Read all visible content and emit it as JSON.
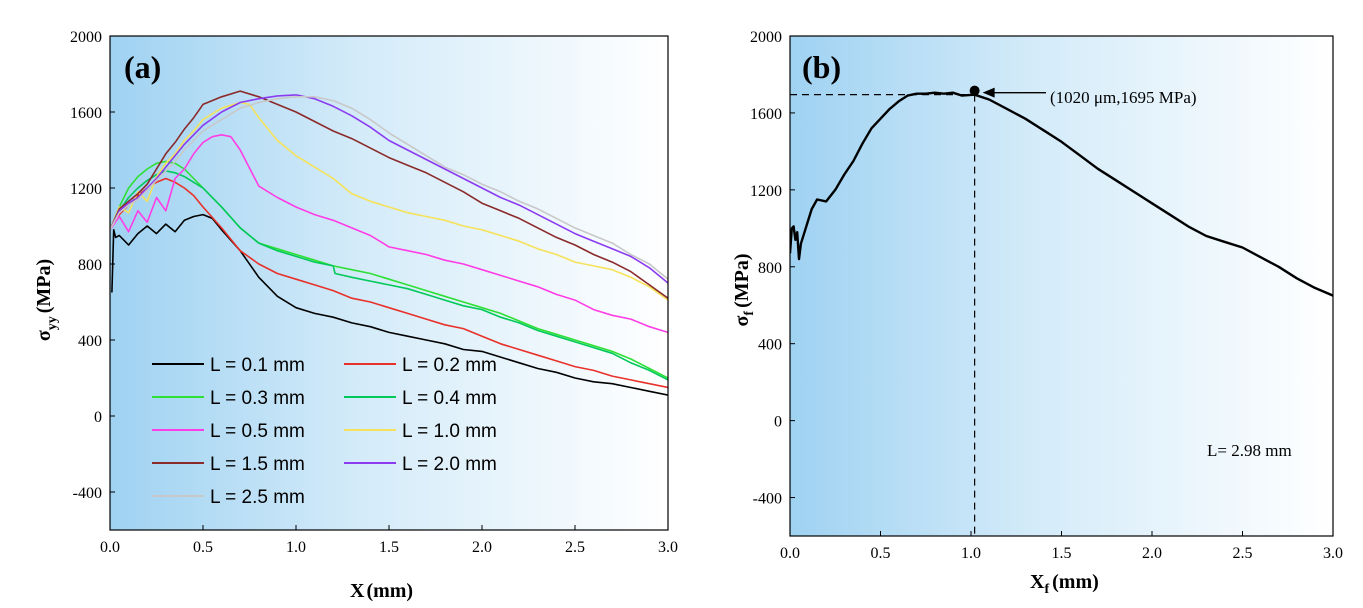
{
  "chart_data": [
    {
      "type": "line",
      "panel_label": "(a)",
      "xlabel": "X",
      "xlabel_unit": "(mm)",
      "ylabel": "σ",
      "ylabel_sub": "yy",
      "ylabel_unit": "(MPa)",
      "xlim": [
        0,
        3.0
      ],
      "ylim": [
        -600,
        2000
      ],
      "xticks": [
        "0.0",
        "0.5",
        "1.0",
        "1.5",
        "2.0",
        "2.5",
        "3.0"
      ],
      "xtick_values": [
        0,
        0.5,
        1.0,
        1.5,
        2.0,
        2.5,
        3.0
      ],
      "yticks": [
        "2000",
        "1600",
        "1200",
        "800",
        "400",
        "0",
        "-400"
      ],
      "ytick_values": [
        2000,
        1600,
        1200,
        800,
        400,
        0,
        -400
      ],
      "legend_position": "bottom-left",
      "series": [
        {
          "name": "L = 0.1 mm",
          "color": "#000000",
          "x": [
            0.01,
            0.02,
            0.03,
            0.05,
            0.1,
            0.15,
            0.2,
            0.25,
            0.3,
            0.35,
            0.4,
            0.45,
            0.5,
            0.55,
            0.6,
            0.7,
            0.8,
            0.9,
            1.0,
            1.1,
            1.2,
            1.3,
            1.4,
            1.5,
            1.6,
            1.7,
            1.8,
            1.9,
            2.0,
            2.1,
            2.2,
            2.3,
            2.4,
            2.5,
            2.6,
            2.7,
            2.8,
            2.9,
            3.0
          ],
          "y": [
            650,
            980,
            940,
            950,
            900,
            960,
            1000,
            960,
            1010,
            970,
            1030,
            1050,
            1060,
            1040,
            980,
            870,
            730,
            630,
            570,
            540,
            520,
            490,
            470,
            440,
            420,
            400,
            380,
            350,
            340,
            310,
            280,
            250,
            230,
            200,
            180,
            170,
            150,
            130,
            110
          ]
        },
        {
          "name": "L = 0.2 mm",
          "color": "#e8312a",
          "x": [
            0.0,
            0.05,
            0.1,
            0.15,
            0.2,
            0.25,
            0.3,
            0.35,
            0.4,
            0.45,
            0.5,
            0.6,
            0.7,
            0.8,
            0.9,
            1.0,
            1.1,
            1.2,
            1.3,
            1.4,
            1.5,
            1.6,
            1.7,
            1.8,
            1.9,
            2.0,
            2.1,
            2.2,
            2.3,
            2.4,
            2.5,
            2.6,
            2.7,
            2.8,
            2.9,
            3.0
          ],
          "y": [
            980,
            1060,
            1110,
            1160,
            1200,
            1230,
            1250,
            1230,
            1200,
            1160,
            1100,
            990,
            870,
            800,
            750,
            720,
            690,
            660,
            620,
            600,
            570,
            540,
            510,
            480,
            460,
            420,
            380,
            350,
            320,
            290,
            260,
            240,
            210,
            190,
            170,
            150
          ]
        },
        {
          "name": "L = 0.3 mm",
          "color": "#2ee035",
          "x": [
            0.0,
            0.05,
            0.1,
            0.15,
            0.2,
            0.25,
            0.3,
            0.35,
            0.4,
            0.45,
            0.5,
            0.6,
            0.7,
            0.8,
            0.9,
            1.0,
            1.1,
            1.2,
            1.3,
            1.4,
            1.5,
            1.6,
            1.7,
            1.8,
            1.9,
            2.0,
            2.1,
            2.2,
            2.3,
            2.4,
            2.5,
            2.6,
            2.7,
            2.8,
            2.9,
            3.0
          ],
          "y": [
            980,
            1100,
            1200,
            1260,
            1300,
            1330,
            1340,
            1330,
            1300,
            1250,
            1200,
            1100,
            990,
            910,
            880,
            850,
            820,
            790,
            770,
            750,
            720,
            690,
            660,
            630,
            600,
            570,
            540,
            500,
            460,
            430,
            400,
            370,
            340,
            300,
            250,
            200
          ]
        },
        {
          "name": "L = 0.4 mm",
          "color": "#00c85a",
          "x": [
            0.0,
            0.05,
            0.1,
            0.15,
            0.2,
            0.25,
            0.3,
            0.35,
            0.4,
            0.45,
            0.5,
            0.6,
            0.7,
            0.8,
            0.9,
            1.0,
            1.1,
            1.2,
            1.21,
            1.3,
            1.4,
            1.5,
            1.6,
            1.7,
            1.8,
            1.9,
            2.0,
            2.1,
            2.2,
            2.3,
            2.4,
            2.5,
            2.6,
            2.7,
            2.8,
            2.9,
            3.0
          ],
          "y": [
            980,
            1080,
            1150,
            1200,
            1240,
            1270,
            1290,
            1280,
            1260,
            1230,
            1200,
            1100,
            990,
            910,
            870,
            840,
            810,
            790,
            750,
            730,
            710,
            690,
            670,
            640,
            610,
            580,
            560,
            520,
            490,
            450,
            420,
            390,
            360,
            330,
            280,
            240,
            190
          ]
        },
        {
          "name": "L = 0.5 mm",
          "color": "#ff3de6",
          "x": [
            0.0,
            0.05,
            0.1,
            0.15,
            0.2,
            0.25,
            0.3,
            0.35,
            0.4,
            0.45,
            0.5,
            0.55,
            0.6,
            0.65,
            0.7,
            0.8,
            0.9,
            1.0,
            1.1,
            1.2,
            1.3,
            1.4,
            1.5,
            1.6,
            1.7,
            1.8,
            1.9,
            2.0,
            2.1,
            2.2,
            2.3,
            2.4,
            2.5,
            2.6,
            2.7,
            2.8,
            2.9,
            3.0
          ],
          "y": [
            980,
            1050,
            970,
            1080,
            1020,
            1150,
            1080,
            1250,
            1300,
            1380,
            1440,
            1470,
            1480,
            1470,
            1400,
            1210,
            1150,
            1100,
            1060,
            1030,
            990,
            950,
            890,
            870,
            850,
            820,
            800,
            770,
            740,
            710,
            680,
            640,
            610,
            560,
            530,
            510,
            470,
            440
          ]
        },
        {
          "name": "L = 1.0 mm",
          "color": "#f5e25a",
          "x": [
            0.0,
            0.05,
            0.1,
            0.15,
            0.2,
            0.25,
            0.3,
            0.35,
            0.4,
            0.45,
            0.5,
            0.6,
            0.7,
            0.75,
            0.8,
            0.9,
            1.0,
            1.1,
            1.2,
            1.3,
            1.4,
            1.5,
            1.6,
            1.7,
            1.8,
            1.9,
            2.0,
            2.1,
            2.2,
            2.3,
            2.4,
            2.5,
            2.6,
            2.7,
            2.8,
            2.9,
            3.0
          ],
          "y": [
            980,
            1100,
            1070,
            1180,
            1130,
            1260,
            1330,
            1380,
            1450,
            1500,
            1560,
            1620,
            1650,
            1640,
            1570,
            1450,
            1370,
            1310,
            1250,
            1170,
            1130,
            1100,
            1070,
            1050,
            1030,
            1000,
            980,
            950,
            920,
            880,
            850,
            810,
            790,
            770,
            730,
            680,
            610
          ]
        },
        {
          "name": "L = 1.5 mm",
          "color": "#8b2a2a",
          "x": [
            0.0,
            0.05,
            0.1,
            0.15,
            0.2,
            0.25,
            0.3,
            0.35,
            0.4,
            0.45,
            0.5,
            0.6,
            0.7,
            0.8,
            0.9,
            1.0,
            1.1,
            1.2,
            1.3,
            1.4,
            1.5,
            1.6,
            1.7,
            1.8,
            1.9,
            2.0,
            2.1,
            2.2,
            2.3,
            2.4,
            2.5,
            2.6,
            2.7,
            2.8,
            2.9,
            3.0
          ],
          "y": [
            980,
            1090,
            1130,
            1170,
            1220,
            1300,
            1380,
            1440,
            1510,
            1570,
            1640,
            1680,
            1710,
            1680,
            1640,
            1600,
            1550,
            1500,
            1460,
            1410,
            1360,
            1320,
            1280,
            1230,
            1180,
            1120,
            1080,
            1040,
            990,
            940,
            900,
            850,
            810,
            760,
            690,
            620
          ]
        },
        {
          "name": "L = 2.0 mm",
          "color": "#8b3cf0",
          "x": [
            0.0,
            0.05,
            0.1,
            0.15,
            0.2,
            0.25,
            0.3,
            0.35,
            0.4,
            0.45,
            0.5,
            0.6,
            0.7,
            0.8,
            0.9,
            1.0,
            1.1,
            1.2,
            1.3,
            1.4,
            1.5,
            1.6,
            1.7,
            1.8,
            1.9,
            2.0,
            2.1,
            2.2,
            2.3,
            2.4,
            2.5,
            2.6,
            2.7,
            2.8,
            2.9,
            3.0
          ],
          "y": [
            980,
            1080,
            1120,
            1150,
            1200,
            1250,
            1310,
            1370,
            1430,
            1480,
            1530,
            1600,
            1650,
            1670,
            1685,
            1690,
            1670,
            1630,
            1580,
            1520,
            1450,
            1400,
            1350,
            1300,
            1250,
            1200,
            1150,
            1110,
            1060,
            1010,
            960,
            920,
            880,
            840,
            780,
            700
          ]
        },
        {
          "name": "L = 2.5 mm",
          "color": "#c8c8c8",
          "x": [
            0.0,
            0.05,
            0.1,
            0.15,
            0.2,
            0.25,
            0.3,
            0.35,
            0.4,
            0.45,
            0.5,
            0.6,
            0.7,
            0.8,
            0.9,
            1.0,
            1.1,
            1.2,
            1.3,
            1.4,
            1.5,
            1.6,
            1.7,
            1.8,
            1.9,
            2.0,
            2.1,
            2.2,
            2.3,
            2.4,
            2.5,
            2.6,
            2.7,
            2.8,
            2.9,
            3.0
          ],
          "y": [
            980,
            1070,
            1110,
            1140,
            1190,
            1240,
            1290,
            1340,
            1400,
            1450,
            1500,
            1560,
            1620,
            1650,
            1670,
            1680,
            1680,
            1660,
            1620,
            1560,
            1490,
            1430,
            1370,
            1310,
            1270,
            1220,
            1180,
            1130,
            1090,
            1040,
            990,
            950,
            910,
            850,
            800,
            720
          ]
        }
      ]
    },
    {
      "type": "line",
      "panel_label": "(b)",
      "xlabel": "X",
      "xlabel_sub": "f",
      "xlabel_unit": "(mm)",
      "ylabel": "σ",
      "ylabel_sub": "f",
      "ylabel_unit": "(MPa)",
      "xlim": [
        0,
        3.0
      ],
      "ylim": [
        -600,
        2000
      ],
      "xticks": [
        "0.0",
        "0.5",
        "1.0",
        "1.5",
        "2.0",
        "2.5",
        "3.0"
      ],
      "xtick_values": [
        0,
        0.5,
        1.0,
        1.5,
        2.0,
        2.5,
        3.0
      ],
      "yticks": [
        "2000",
        "1600",
        "1200",
        "800",
        "400",
        "0",
        "-400"
      ],
      "ytick_values": [
        2000,
        1600,
        1200,
        800,
        400,
        0,
        -400
      ],
      "series": [
        {
          "name": "σf",
          "color": "#000000",
          "x": [
            0.0,
            0.01,
            0.02,
            0.03,
            0.04,
            0.05,
            0.06,
            0.08,
            0.1,
            0.12,
            0.15,
            0.2,
            0.25,
            0.3,
            0.35,
            0.4,
            0.45,
            0.5,
            0.55,
            0.6,
            0.65,
            0.7,
            0.75,
            0.8,
            0.85,
            0.9,
            0.95,
            1.02,
            1.1,
            1.2,
            1.3,
            1.4,
            1.5,
            1.6,
            1.7,
            1.8,
            1.9,
            2.0,
            2.1,
            2.2,
            2.3,
            2.4,
            2.5,
            2.6,
            2.7,
            2.8,
            2.9,
            3.0
          ],
          "y": [
            870,
            1000,
            1010,
            940,
            980,
            840,
            920,
            980,
            1040,
            1100,
            1150,
            1140,
            1200,
            1280,
            1350,
            1440,
            1520,
            1570,
            1620,
            1660,
            1690,
            1700,
            1700,
            1705,
            1700,
            1705,
            1690,
            1695,
            1670,
            1620,
            1570,
            1510,
            1450,
            1380,
            1310,
            1250,
            1190,
            1130,
            1070,
            1010,
            960,
            930,
            900,
            850,
            800,
            740,
            690,
            650
          ]
        }
      ],
      "marker": {
        "x": 1.02,
        "y": 1695,
        "label": "(1020 μm,1695 MPa)"
      },
      "annotation": "L= 2.98 mm"
    }
  ]
}
